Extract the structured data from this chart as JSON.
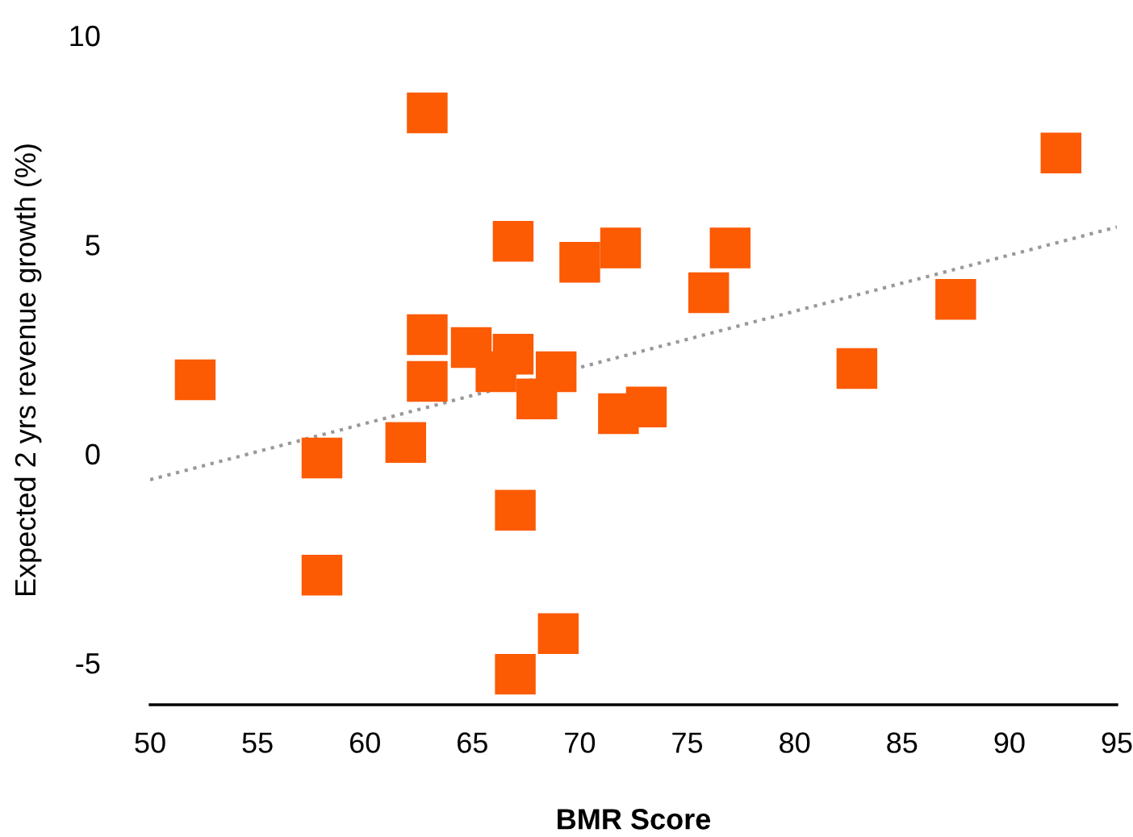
{
  "chart_data": {
    "type": "scatter",
    "xlabel": "BMR Score",
    "ylabel": "Expected 2 yrs revenue growth (%)",
    "xlim": [
      50,
      95
    ],
    "xticks": [
      50,
      55,
      60,
      65,
      70,
      75,
      80,
      85,
      90,
      95
    ],
    "ylim": [
      -6,
      10
    ],
    "yticks": [
      -5,
      0,
      5,
      10
    ],
    "grid": false,
    "legend": false,
    "series": [
      {
        "color": "#fc5a03",
        "marker": "square",
        "x": [
          52.1,
          58.0,
          58.0,
          61.9,
          62.9,
          62.9,
          62.9,
          64.95,
          66.1,
          66.9,
          66.9,
          67.0,
          67.0,
          68.0,
          68.9,
          69.0,
          70.0,
          71.9,
          71.8,
          73.1,
          76.0,
          77.0,
          82.9,
          87.5,
          92.4
        ],
        "values": [
          1.77,
          -0.1,
          -2.9,
          0.27,
          8.15,
          2.85,
          1.73,
          2.54,
          1.96,
          2.38,
          5.08,
          -1.35,
          -5.27,
          1.31,
          1.96,
          -4.3,
          4.58,
          4.92,
          0.96,
          1.12,
          3.85,
          4.92,
          2.04,
          3.69,
          7.19
        ]
      },
      {
        "type": "line",
        "color": "#999999",
        "line_style": "dotted",
        "marker": "none",
        "x": [
          50,
          95
        ],
        "values": [
          -0.62,
          5.42
        ]
      }
    ]
  }
}
